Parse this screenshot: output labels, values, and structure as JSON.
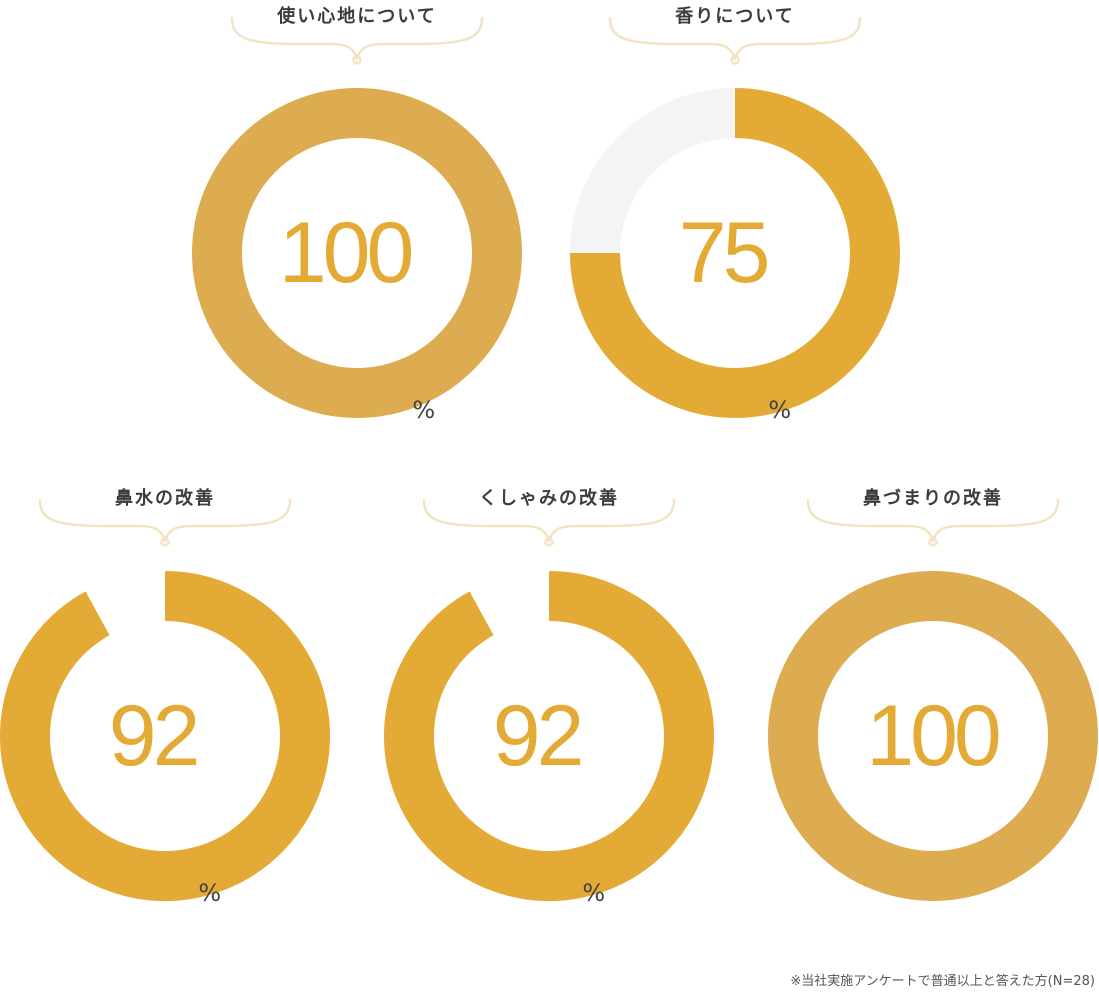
{
  "colors": {
    "ring_full": "#ddab50",
    "ring_partial": "#e3ab35",
    "track": "#f4f4f4",
    "brace": "#f2e4c2",
    "title_text": "#3c3c3c",
    "number_text": "#e3ab35"
  },
  "chart_data": [
    {
      "type": "pie",
      "title": "使い心地について",
      "value": 100,
      "value_label": "100",
      "unit": "%"
    },
    {
      "type": "pie",
      "title": "香りについて",
      "value": 75,
      "value_label": "75",
      "unit": "%"
    },
    {
      "type": "pie",
      "title": "鼻水の改善",
      "value": 92,
      "value_label": "92",
      "unit": "%"
    },
    {
      "type": "pie",
      "title": "くしゃみの改善",
      "value": 92,
      "value_label": "92",
      "unit": "%"
    },
    {
      "type": "pie",
      "title": "鼻づまりの改善",
      "value": 100,
      "value_label": "100",
      "unit": ""
    }
  ],
  "footnote": "※当社実施アンケートで普通以上と答えた方(N=28)"
}
